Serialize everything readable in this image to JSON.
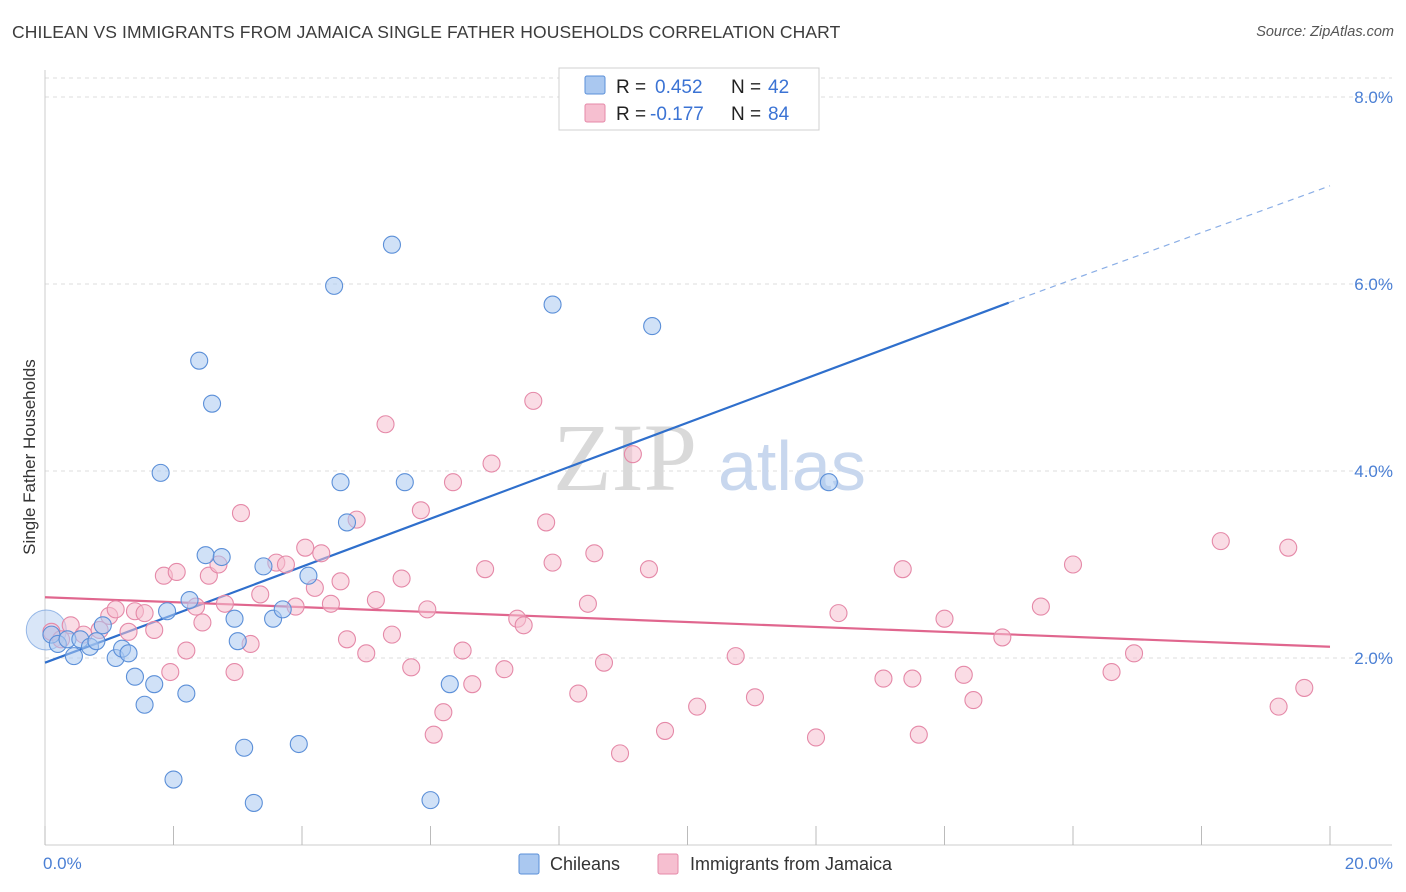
{
  "title": "CHILEAN VS IMMIGRANTS FROM JAMAICA SINGLE FATHER HOUSEHOLDS CORRELATION CHART",
  "source": "Source: ZipAtlas.com",
  "watermark": {
    "zip": "ZIP",
    "atlas": "atlas"
  },
  "colors": {
    "blue_fill": "#aac8f0",
    "blue_stroke": "#5b8fd8",
    "blue_line": "#2f6fcc",
    "pink_fill": "#f6bfd0",
    "pink_stroke": "#e589a8",
    "pink_line": "#e0668e",
    "grid": "#dddddd",
    "axis_label": "#4a7fd4"
  },
  "legend": {
    "r_label": "R =",
    "n_label": "N =",
    "rows": [
      {
        "series": "Chileans",
        "r": "0.452",
        "n": "42"
      },
      {
        "series": "Immigrants from Jamaica",
        "r": "-0.177",
        "n": "84"
      }
    ]
  },
  "chart_data": {
    "type": "scatter",
    "xlabel": "",
    "ylabel": "Single Father Households",
    "xlim": [
      0,
      20
    ],
    "ylim": [
      0,
      8.2
    ],
    "x_ticks": [
      0,
      20
    ],
    "x_tick_labels": [
      "0.0%",
      "20.0%"
    ],
    "y_ticks": [
      2,
      4,
      6,
      8
    ],
    "y_tick_labels": [
      "2.0%",
      "4.0%",
      "6.0%",
      "8.0%"
    ],
    "grid": "horizontal dashed",
    "legend_position": "top-center",
    "series": [
      {
        "name": "Chileans",
        "color": "blue",
        "trend": {
          "x0": 0,
          "y0": 1.95,
          "x1": 15.0,
          "y1": 5.8,
          "dashed_to_x": 20,
          "dashed_to_y": 7.05
        },
        "points": [
          [
            0.1,
            2.25
          ],
          [
            0.2,
            2.15
          ],
          [
            0.35,
            2.2
          ],
          [
            0.45,
            2.02
          ],
          [
            0.55,
            2.2
          ],
          [
            0.7,
            2.12
          ],
          [
            0.8,
            2.18
          ],
          [
            0.9,
            2.35
          ],
          [
            1.1,
            2.0
          ],
          [
            1.2,
            2.1
          ],
          [
            1.3,
            2.05
          ],
          [
            1.4,
            1.8
          ],
          [
            1.55,
            1.5
          ],
          [
            1.7,
            1.72
          ],
          [
            1.8,
            3.98
          ],
          [
            1.9,
            2.5
          ],
          [
            2.0,
            0.7
          ],
          [
            2.2,
            1.62
          ],
          [
            2.25,
            2.62
          ],
          [
            2.4,
            5.18
          ],
          [
            2.5,
            3.1
          ],
          [
            2.6,
            4.72
          ],
          [
            2.75,
            3.08
          ],
          [
            2.95,
            2.42
          ],
          [
            3.0,
            2.18
          ],
          [
            3.1,
            1.04
          ],
          [
            3.25,
            0.45
          ],
          [
            3.4,
            2.98
          ],
          [
            3.55,
            2.42
          ],
          [
            3.7,
            2.52
          ],
          [
            3.95,
            1.08
          ],
          [
            4.1,
            2.88
          ],
          [
            4.5,
            5.98
          ],
          [
            4.6,
            3.88
          ],
          [
            4.7,
            3.45
          ],
          [
            5.4,
            6.42
          ],
          [
            5.6,
            3.88
          ],
          [
            6.0,
            0.48
          ],
          [
            6.3,
            1.72
          ],
          [
            7.9,
            5.78
          ],
          [
            9.45,
            5.55
          ],
          [
            12.2,
            3.88
          ]
        ]
      },
      {
        "name": "Immigrants from Jamaica",
        "color": "pink",
        "trend": {
          "x0": 0,
          "y0": 2.65,
          "x1": 20,
          "y1": 2.12
        },
        "points": [
          [
            0.1,
            2.28
          ],
          [
            0.25,
            2.2
          ],
          [
            0.4,
            2.35
          ],
          [
            0.6,
            2.25
          ],
          [
            0.85,
            2.3
          ],
          [
            1.0,
            2.45
          ],
          [
            1.1,
            2.52
          ],
          [
            1.3,
            2.28
          ],
          [
            1.4,
            2.5
          ],
          [
            1.55,
            2.48
          ],
          [
            1.7,
            2.3
          ],
          [
            1.85,
            2.88
          ],
          [
            1.95,
            1.85
          ],
          [
            2.05,
            2.92
          ],
          [
            2.2,
            2.08
          ],
          [
            2.35,
            2.55
          ],
          [
            2.45,
            2.38
          ],
          [
            2.55,
            2.88
          ],
          [
            2.7,
            3.0
          ],
          [
            2.8,
            2.58
          ],
          [
            2.95,
            1.85
          ],
          [
            3.05,
            3.55
          ],
          [
            3.2,
            2.15
          ],
          [
            3.35,
            2.68
          ],
          [
            3.6,
            3.02
          ],
          [
            3.75,
            3.0
          ],
          [
            3.9,
            2.55
          ],
          [
            4.05,
            3.18
          ],
          [
            4.2,
            2.75
          ],
          [
            4.3,
            3.12
          ],
          [
            4.45,
            2.58
          ],
          [
            4.6,
            2.82
          ],
          [
            4.7,
            2.2
          ],
          [
            4.85,
            3.48
          ],
          [
            5.0,
            2.05
          ],
          [
            5.15,
            2.62
          ],
          [
            5.3,
            4.5
          ],
          [
            5.4,
            2.25
          ],
          [
            5.55,
            2.85
          ],
          [
            5.7,
            1.9
          ],
          [
            5.85,
            3.58
          ],
          [
            5.95,
            2.52
          ],
          [
            6.05,
            1.18
          ],
          [
            6.2,
            1.42
          ],
          [
            6.35,
            3.88
          ],
          [
            6.5,
            2.08
          ],
          [
            6.65,
            1.72
          ],
          [
            6.85,
            2.95
          ],
          [
            6.95,
            4.08
          ],
          [
            7.15,
            1.88
          ],
          [
            7.35,
            2.42
          ],
          [
            7.45,
            2.35
          ],
          [
            7.6,
            4.75
          ],
          [
            7.8,
            3.45
          ],
          [
            7.9,
            3.02
          ],
          [
            8.3,
            1.62
          ],
          [
            8.45,
            2.58
          ],
          [
            8.55,
            3.12
          ],
          [
            8.7,
            1.95
          ],
          [
            8.95,
            0.98
          ],
          [
            9.15,
            4.18
          ],
          [
            9.4,
            2.95
          ],
          [
            9.65,
            1.22
          ],
          [
            10.15,
            1.48
          ],
          [
            10.75,
            2.02
          ],
          [
            11.05,
            1.58
          ],
          [
            12.0,
            1.15
          ],
          [
            12.35,
            2.48
          ],
          [
            13.35,
            2.95
          ],
          [
            13.5,
            1.78
          ],
          [
            13.6,
            1.18
          ],
          [
            14.3,
            1.82
          ],
          [
            14.45,
            1.55
          ],
          [
            14.9,
            2.22
          ],
          [
            15.5,
            2.55
          ],
          [
            16.0,
            3.0
          ],
          [
            16.6,
            1.85
          ],
          [
            16.95,
            2.05
          ],
          [
            18.3,
            3.25
          ],
          [
            19.2,
            1.48
          ],
          [
            19.35,
            3.18
          ],
          [
            19.6,
            1.68
          ],
          [
            13.05,
            1.78
          ],
          [
            14.0,
            2.42
          ]
        ]
      }
    ]
  }
}
